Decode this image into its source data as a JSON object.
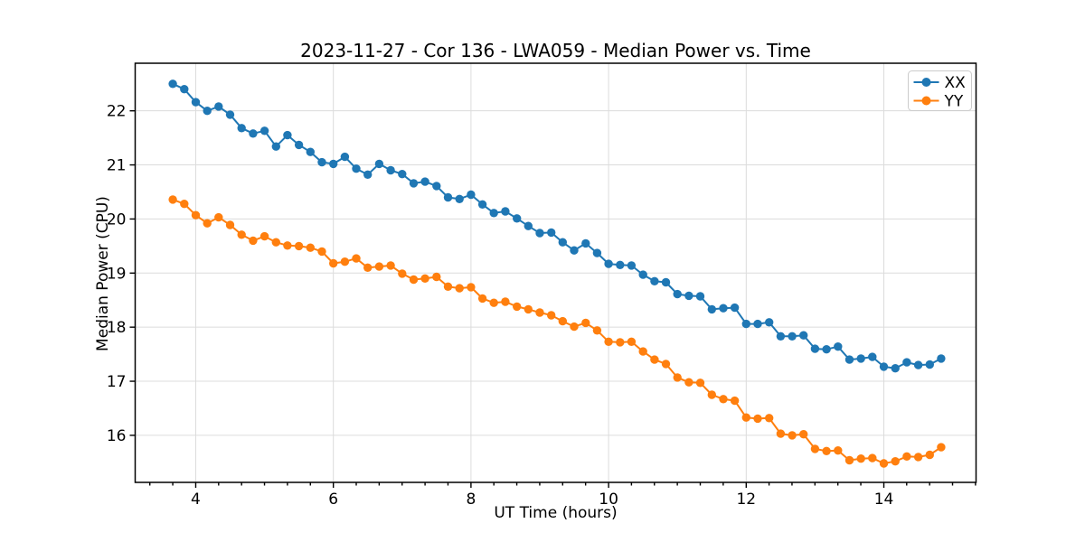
{
  "chart_data": {
    "type": "line",
    "title": "2023-11-27 - Cor 136 - LWA059 - Median Power vs. Time",
    "xlabel": "UT Time (hours)",
    "ylabel": "Median Power (CPU)",
    "xlim": [
      3.12,
      15.34
    ],
    "ylim": [
      15.13,
      22.88
    ],
    "x_major_ticks": [
      4,
      6,
      8,
      10,
      12,
      14
    ],
    "x_minor_tick_step": 0.3333,
    "y_major_ticks": [
      16,
      17,
      18,
      19,
      20,
      21,
      22
    ],
    "grid": true,
    "grid_color": "#dcdcdc",
    "legend_position": "upper right",
    "x": [
      3.667,
      3.833,
      4.0,
      4.167,
      4.333,
      4.5,
      4.667,
      4.833,
      5.0,
      5.167,
      5.333,
      5.5,
      5.667,
      5.833,
      6.0,
      6.167,
      6.333,
      6.5,
      6.667,
      6.833,
      7.0,
      7.167,
      7.333,
      7.5,
      7.667,
      7.833,
      8.0,
      8.167,
      8.333,
      8.5,
      8.667,
      8.833,
      9.0,
      9.167,
      9.333,
      9.5,
      9.667,
      9.833,
      10.0,
      10.167,
      10.333,
      10.5,
      10.667,
      10.833,
      11.0,
      11.167,
      11.333,
      11.5,
      11.667,
      11.833,
      12.0,
      12.167,
      12.333,
      12.5,
      12.667,
      12.833,
      13.0,
      13.167,
      13.333,
      13.5,
      13.667,
      13.833,
      14.0,
      14.167,
      14.333,
      14.5,
      14.667,
      14.833
    ],
    "series": [
      {
        "name": "XX",
        "color": "#1f77b4",
        "values": [
          22.5,
          22.4,
          22.16,
          22.0,
          22.08,
          21.93,
          21.68,
          21.58,
          21.63,
          21.34,
          21.55,
          21.37,
          21.24,
          21.05,
          21.02,
          21.15,
          20.93,
          20.82,
          21.02,
          20.9,
          20.83,
          20.66,
          20.69,
          20.61,
          20.4,
          20.37,
          20.45,
          20.27,
          20.11,
          20.14,
          20.01,
          19.87,
          19.74,
          19.75,
          19.57,
          19.42,
          19.55,
          19.37,
          19.17,
          19.15,
          19.14,
          18.97,
          18.85,
          18.83,
          18.61,
          18.58,
          18.57,
          18.33,
          18.35,
          18.36,
          18.06,
          18.06,
          18.09,
          17.83,
          17.83,
          17.85,
          17.6,
          17.59,
          17.64,
          17.4,
          17.42,
          17.45,
          17.27,
          17.24,
          17.35,
          17.3,
          17.31,
          17.42
        ]
      },
      {
        "name": "YY",
        "color": "#ff7f0e",
        "values": [
          20.36,
          20.28,
          20.07,
          19.92,
          20.03,
          19.89,
          19.71,
          19.6,
          19.68,
          19.57,
          19.51,
          19.5,
          19.47,
          19.4,
          19.18,
          19.21,
          19.27,
          19.1,
          19.12,
          19.14,
          18.99,
          18.88,
          18.9,
          18.93,
          18.75,
          18.72,
          18.74,
          18.53,
          18.45,
          18.47,
          18.38,
          18.33,
          18.27,
          18.22,
          18.11,
          18.01,
          18.08,
          17.94,
          17.73,
          17.72,
          17.73,
          17.55,
          17.4,
          17.32,
          17.07,
          16.98,
          16.97,
          16.75,
          16.67,
          16.64,
          16.33,
          16.31,
          16.32,
          16.03,
          16.0,
          16.02,
          15.75,
          15.71,
          15.72,
          15.54,
          15.57,
          15.58,
          15.48,
          15.52,
          15.61,
          15.6,
          15.64,
          15.78
        ]
      }
    ]
  }
}
